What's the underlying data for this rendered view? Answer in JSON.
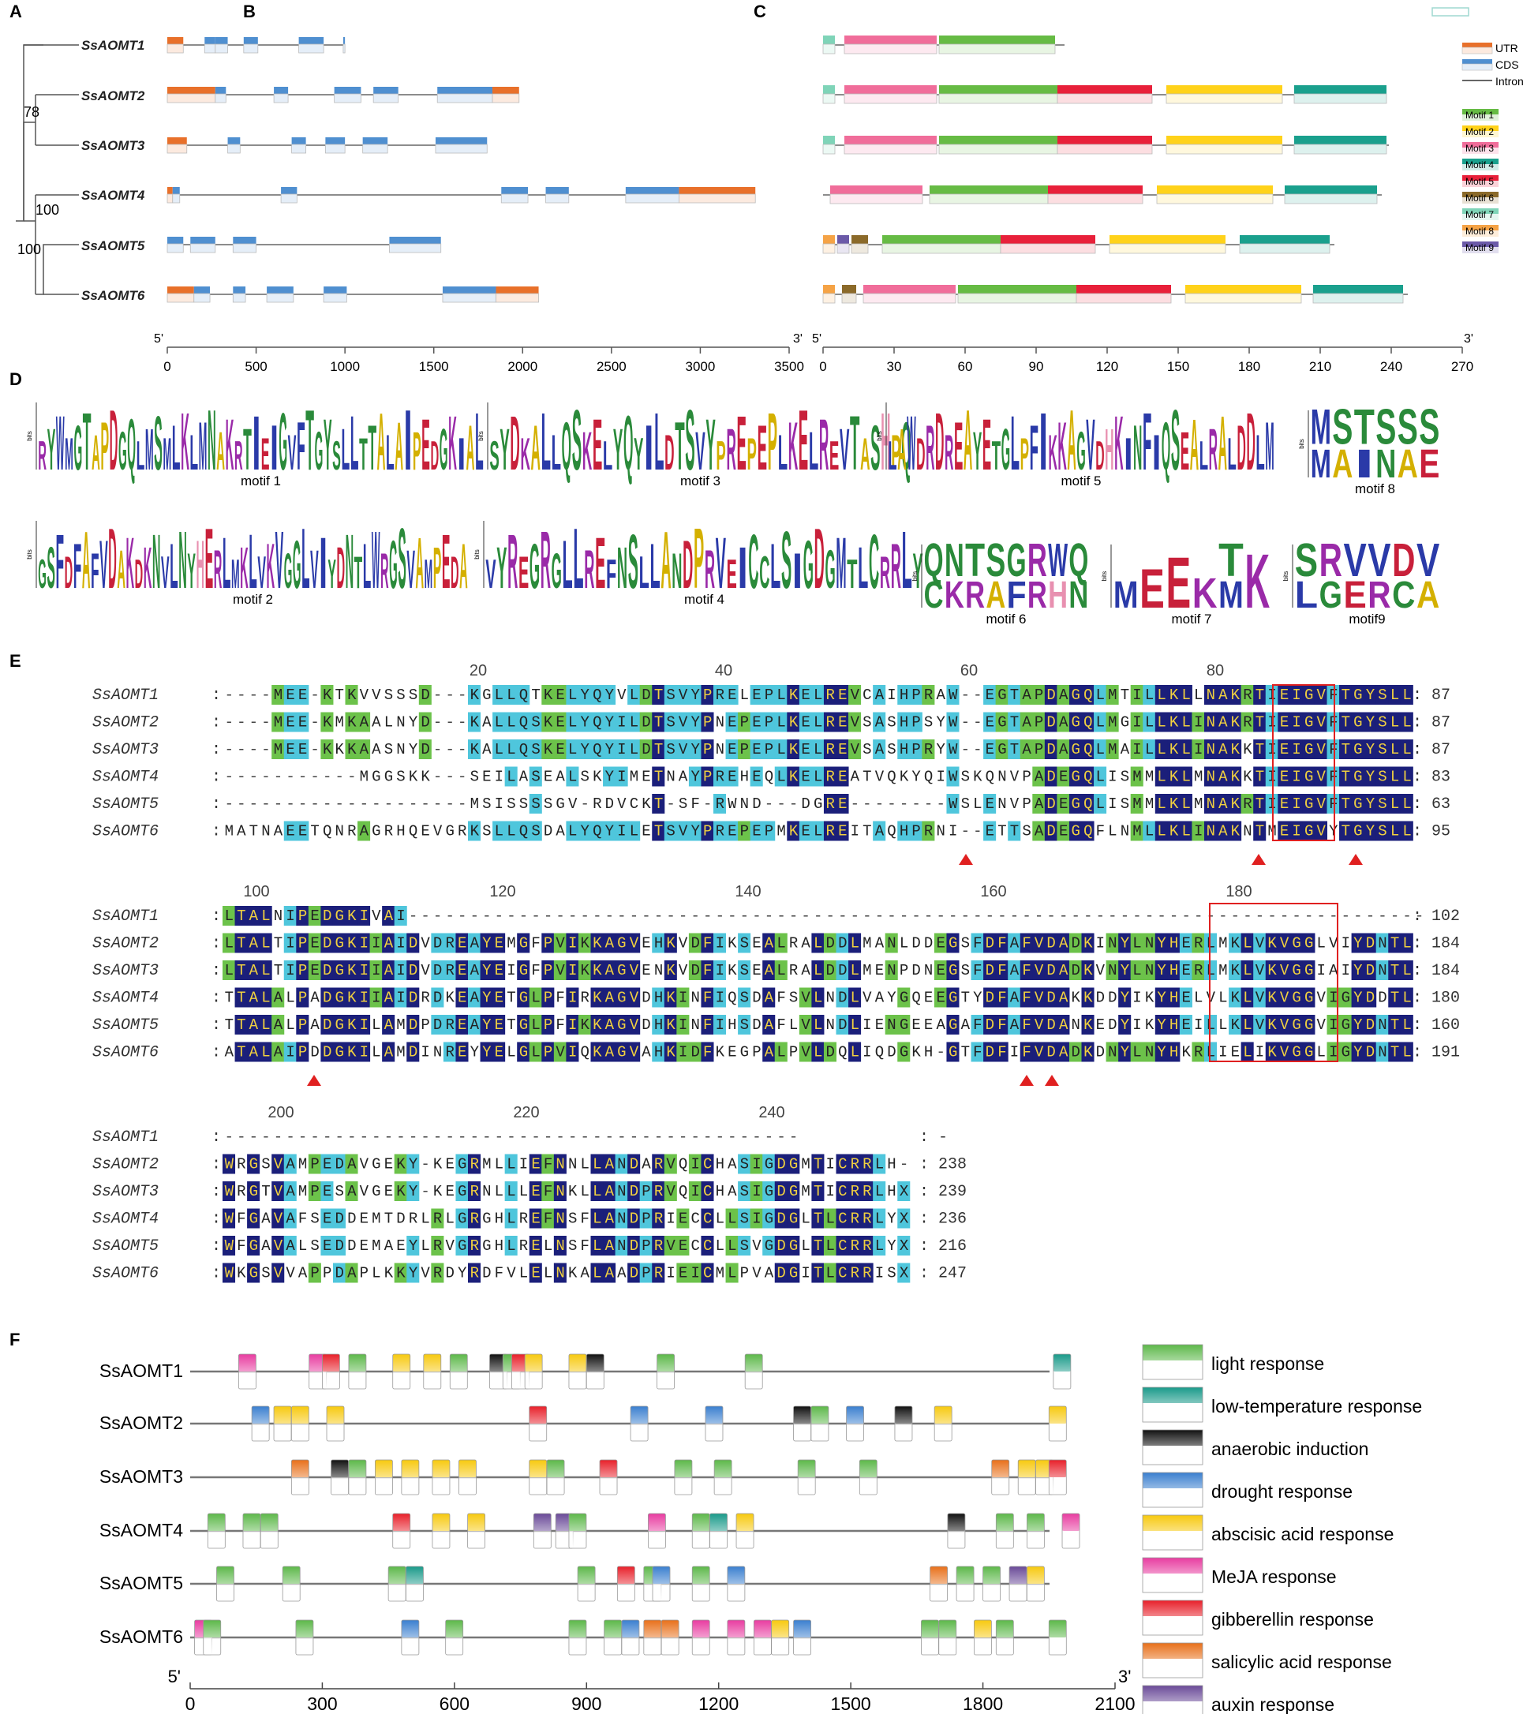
{
  "panels": {
    "A": "A",
    "B": "B",
    "C": "C",
    "D": "D",
    "E": "E",
    "F": "F"
  },
  "genes": [
    "SsAOMT1",
    "SsAOMT2",
    "SsAOMT3",
    "SsAOMT4",
    "SsAOMT5",
    "SsAOMT6"
  ],
  "tree": {
    "bootstrap": [
      "78",
      "100",
      "100"
    ]
  },
  "colors": {
    "utr": "#e8702a",
    "cds": "#4f8fd0",
    "intron": "#333333",
    "motif1": "#66bb44",
    "motif2": "#ffd21a",
    "motif3": "#f06d9a",
    "motif4": "#1aa08d",
    "motif5": "#e8203a",
    "motif6": "#8b6a2a",
    "motif7": "#7fd4b8",
    "motif8": "#f5a346",
    "motif9": "#6b5aa8",
    "dark_block": "#1b1f7a",
    "cyan_block": "#4fc6dc",
    "green_block": "#6cc24a"
  },
  "gene_structure": {
    "legend": [
      {
        "key": "utr",
        "label": "UTR"
      },
      {
        "key": "cds",
        "label": "CDS"
      },
      {
        "key": "intron",
        "label": "Intron"
      }
    ],
    "axis": {
      "start_label": "5'",
      "end_label": "3'",
      "ticks": [
        "0",
        "500",
        "1000",
        "1500",
        "2000",
        "2500",
        "3000",
        "3500"
      ],
      "range": [
        0,
        3500
      ]
    },
    "features": [
      [
        [
          "utr",
          0,
          90
        ],
        [
          "cds",
          210,
          270
        ],
        [
          "cds",
          270,
          340
        ],
        [
          "cds",
          430,
          510
        ],
        [
          "cds",
          740,
          880
        ],
        [
          "cds",
          990,
          1000
        ]
      ],
      [
        [
          "utr",
          0,
          270
        ],
        [
          "cds",
          270,
          330
        ],
        [
          "cds",
          600,
          680
        ],
        [
          "cds",
          940,
          1090
        ],
        [
          "cds",
          1160,
          1300
        ],
        [
          "cds",
          1520,
          1830
        ],
        [
          "utr",
          1830,
          1980
        ]
      ],
      [
        [
          "utr",
          0,
          110
        ],
        [
          "cds",
          340,
          410
        ],
        [
          "cds",
          700,
          780
        ],
        [
          "cds",
          890,
          1000
        ],
        [
          "cds",
          1100,
          1240
        ],
        [
          "cds",
          1510,
          1800
        ]
      ],
      [
        [
          "utr",
          0,
          30
        ],
        [
          "cds",
          30,
          70
        ],
        [
          "cds",
          640,
          730
        ],
        [
          "cds",
          1880,
          2030
        ],
        [
          "cds",
          2130,
          2260
        ],
        [
          "cds",
          2580,
          2880
        ],
        [
          "utr",
          2880,
          3310
        ]
      ],
      [
        [
          "cds",
          0,
          90
        ],
        [
          "cds",
          130,
          270
        ],
        [
          "cds",
          370,
          500
        ],
        [
          "cds",
          1250,
          1540
        ]
      ],
      [
        [
          "utr",
          0,
          150
        ],
        [
          "cds",
          150,
          240
        ],
        [
          "cds",
          370,
          440
        ],
        [
          "cds",
          560,
          710
        ],
        [
          "cds",
          880,
          1010
        ],
        [
          "cds",
          1550,
          1850
        ],
        [
          "utr",
          1850,
          2090
        ]
      ]
    ]
  },
  "motif_structure": {
    "legend": [
      {
        "key": "motif1",
        "label": "Motif 1"
      },
      {
        "key": "motif2",
        "label": "Motif 2"
      },
      {
        "key": "motif3",
        "label": "Motif 3"
      },
      {
        "key": "motif4",
        "label": "Motif 4"
      },
      {
        "key": "motif5",
        "label": "Motif 5"
      },
      {
        "key": "motif6",
        "label": "Motif 6"
      },
      {
        "key": "motif7",
        "label": "Motif 7"
      },
      {
        "key": "motif8",
        "label": "Motif 8"
      },
      {
        "key": "motif9",
        "label": "Motif 9"
      }
    ],
    "axis": {
      "start_label": "5'",
      "end_label": "3'",
      "ticks": [
        "0",
        "30",
        "60",
        "90",
        "120",
        "150",
        "180",
        "210",
        "240",
        "270"
      ],
      "range": [
        0,
        270
      ]
    },
    "lengths": [
      102,
      238,
      239,
      236,
      216,
      247
    ],
    "features": [
      [
        [
          "motif7",
          0,
          5
        ],
        [
          "motif3",
          9,
          48
        ],
        [
          "motif1",
          49,
          98
        ]
      ],
      [
        [
          "motif7",
          0,
          5
        ],
        [
          "motif3",
          9,
          48
        ],
        [
          "motif1",
          49,
          99
        ],
        [
          "motif5",
          99,
          139
        ],
        [
          "motif2",
          145,
          194
        ],
        [
          "motif4",
          199,
          238
        ]
      ],
      [
        [
          "motif7",
          0,
          5
        ],
        [
          "motif3",
          9,
          48
        ],
        [
          "motif1",
          49,
          99
        ],
        [
          "motif5",
          99,
          139
        ],
        [
          "motif2",
          145,
          194
        ],
        [
          "motif4",
          199,
          238
        ]
      ],
      [
        [
          "motif3",
          3,
          42
        ],
        [
          "motif1",
          45,
          95
        ],
        [
          "motif5",
          95,
          135
        ],
        [
          "motif2",
          141,
          190
        ],
        [
          "motif4",
          195,
          234
        ]
      ],
      [
        [
          "motif8",
          0,
          5
        ],
        [
          "motif9",
          6,
          11
        ],
        [
          "motif6",
          12,
          19
        ],
        [
          "motif1",
          25,
          75
        ],
        [
          "motif5",
          75,
          115
        ],
        [
          "motif2",
          121,
          170
        ],
        [
          "motif4",
          176,
          214
        ]
      ],
      [
        [
          "motif8",
          0,
          5
        ],
        [
          "motif6",
          8,
          14
        ],
        [
          "motif3",
          17,
          56
        ],
        [
          "motif1",
          57,
          107
        ],
        [
          "motif5",
          107,
          147
        ],
        [
          "motif2",
          153,
          202
        ],
        [
          "motif4",
          207,
          245
        ]
      ]
    ]
  },
  "logos": {
    "y_label": "bits",
    "items": [
      {
        "caption": "motif 1",
        "letters": "RYWMGTAPDGQLMSMLKLMNAKRTIEIGVFTGYSLLTTALAIPEDGKIAL"
      },
      {
        "caption": "motif 3",
        "letters": "SYDKALLQSKELYQYILDTSVYPREPEPLKELREVTASHPQ"
      },
      {
        "caption": "motif 5",
        "letters": "LAWDRDREAYETGLPFIKKAGVDHKINFIQSEALRALDDLM"
      },
      {
        "caption": "motif 8",
        "letters": "MSTSSS",
        "alt": "MAINAE"
      },
      {
        "caption": "motif 2",
        "letters": "GSFDFAFVDAKDKNVLNYHERLMKLVKVGGLVIYDNTLWRGSVAMPEDA"
      },
      {
        "caption": "motif 4",
        "letters": "VYREGRGLLREFNSLLANDPRVEICCLSIGDGMTLCRRLY"
      },
      {
        "caption": "motif 6",
        "letters": "QNTSGRWQ",
        "alt": "CKRAFRHN"
      },
      {
        "caption": "motif 7",
        "letters": "MEEKTK",
        "alt": "    M "
      },
      {
        "caption": "motif9",
        "letters": "SRVVDV",
        "alt": "LGERCA"
      }
    ]
  },
  "alignment": {
    "blocks": [
      {
        "ruler": [
          "20",
          "40",
          "60",
          "80"
        ],
        "rows": [
          {
            "name": "SsAOMT1",
            "seq": "----MEE-KTKVVSSSD---KGLLQTKELYQYVLDTSVYPRELEPLKELREVCAIHPRAW--EGTAPDAGQLMTILLKLLNAKRTIEIGVFTGYSLL",
            "end": "87"
          },
          {
            "name": "SsAOMT2",
            "seq": "----MEE-KMKAALNYD---KALLQSKELYQYILDTSVYPNEPEPLKELREVSASHPSYW--EGTAPDAGQLMGILLKLINAKRTIEIGVFTGYSLL",
            "end": "87"
          },
          {
            "name": "SsAOMT3",
            "seq": "----MEE-KKKAASNYD---KALLQSKELYQYILDTSVYPNEPEPLKELREVSASHPRYW--EGTAPDAGQLMAILLKLINAKKTIEIGVFTGYSLL",
            "end": "87"
          },
          {
            "name": "SsAOMT4",
            "seq": "-----------MGGSKK---SEILASEALSKYIMETNAYPREHEQLKELREATVQKYQIWSKQNVPADEGQLISMMLKLMNAKKTIEIGVFTGYSLL",
            "end": "83"
          },
          {
            "name": "SsAOMT5",
            "seq": "--------------------MSISSSSGV-RDVCKT-SF-RWND---DGRE--------WSLENVPADEGQLISMMLKLMNAKRTIEIGVFTGYSLL",
            "end": "63"
          },
          {
            "name": "SsAOMT6",
            "seq": "MATNAEETQNRAGRHQEVGRKSLLQSDALYQYILETSVYPREPEPMKELREITAQHPRNI--ETTSADEGQFLNMLLKLINAKNTMEIGVYTGYSLL",
            "end": "95"
          }
        ]
      },
      {
        "ruler": [
          "100",
          "120",
          "140",
          "160",
          "180"
        ],
        "rows": [
          {
            "name": "SsAOMT1",
            "seq": "LTALNIPEDGKIVAI-----------------------------------------------------------------------------------",
            "end": "102"
          },
          {
            "name": "SsAOMT2",
            "seq": "LTALTIPEDGKIIAIDVDREAYEMGFPVIKKAGVEHKVDFIKSEALRALDDLMANLDDEGSFDFAFVDADKINYLNYHERLMKLVKVGGLVIYDNTL",
            "end": "184"
          },
          {
            "name": "SsAOMT3",
            "seq": "LTALTIPEDGKIIAIDVDREAYEIGFPVIKKAGVENKVDFIKSEALRALDDLMENPDNEGSFDFAFVDADKVNYLNYHERLMKLVKVGGIAIYDNTL",
            "end": "184"
          },
          {
            "name": "SsAOMT4",
            "seq": "TTALALPADGKIIAIDRDKEAYETGLPFIRKAGVDHKINFIQSDAFSVLNDLVAYGQEEGTYDFAFVDAKKDDYIKYHELVLKLVKVGGVIGYDDTL",
            "end": "180"
          },
          {
            "name": "SsAOMT5",
            "seq": "TTALALPADGKILAMDPDREAYETGLPFIKKAGVDHKINFIHSDAFLVLNDLIENGEEAGAFDFAFVDANKEDYIKYHEILLKLVKVGGVIGYDNTL",
            "end": "160"
          },
          {
            "name": "SsAOMT6",
            "seq": "ATALAIPDDGKILAMDINREYYELGLPVIQKAGVAHKIDFKEGPALPVLDQLIQDGKH-GTFDFIFVDADKDNYLNYHKRLIELIKVGGLIGYDNTL",
            "end": "191"
          }
        ]
      },
      {
        "ruler": [
          "200",
          "220",
          "240"
        ],
        "rows": [
          {
            "name": "SsAOMT1",
            "seq": "-----------------------------------------------",
            "end": "-"
          },
          {
            "name": "SsAOMT2",
            "seq": "WRGSVAMPEDAVGEKY-KEGRMLLIEFNNLLANDARVQICHASIGDGMTICRRLH-",
            "end": "238"
          },
          {
            "name": "SsAOMT3",
            "seq": "WRGTVAMPESAVGEKY-KEGRNLLLEFNKLLANDPRVQICHASIGDGMTICRRLHX",
            "end": "239"
          },
          {
            "name": "SsAOMT4",
            "seq": "WFGAVAFSEDDEMTDRLRLGRGHLREFNSFLANDPRIECCLLSIGDGLTLCRRLYX",
            "end": "236"
          },
          {
            "name": "SsAOMT5",
            "seq": "WFGAVALSEDDEMAEYLRVGRGHLRELNSFLANDPRVECCLLSVGDGLTLCRRLYX",
            "end": "216"
          },
          {
            "name": "SsAOMT6",
            "seq": "WKGSVVAPPDAPLKKYVRDYRDFVLELNKALAADPRIEICMLPVADGITLCRRISX",
            "end": "247"
          }
        ]
      }
    ]
  },
  "promoter": {
    "names": [
      "SsAOMT1",
      "SsAOMT2",
      "SsAOMT3",
      "SsAOMT4",
      "SsAOMT5",
      "SsAOMT6"
    ],
    "legend": [
      {
        "key": "light",
        "label": "light response",
        "color": "#5db84a"
      },
      {
        "key": "lowtemp",
        "label": "low-temperature response",
        "color": "#1a9a8a"
      },
      {
        "key": "anaerobic",
        "label": "anaerobic induction",
        "color": "#111111"
      },
      {
        "key": "drought",
        "label": "drought response",
        "color": "#3a7fcf"
      },
      {
        "key": "aba",
        "label": "abscisic acid response",
        "color": "#f7c90f"
      },
      {
        "key": "meja",
        "label": "MeJA response",
        "color": "#e83ca0"
      },
      {
        "key": "ga",
        "label": "gibberellin response",
        "color": "#e8202a"
      },
      {
        "key": "sa",
        "label": "salicylic acid response",
        "color": "#e8701a"
      },
      {
        "key": "auxin",
        "label": "auxin response",
        "color": "#6a4a98"
      }
    ],
    "axis": {
      "start_label": "5'",
      "end_label": "3'",
      "ticks": [
        "0",
        "300",
        "600",
        "900",
        "1200",
        "1500",
        "1800",
        "2100"
      ],
      "range": [
        0,
        2100
      ]
    },
    "elements": [
      [
        [
          "meja",
          110
        ],
        [
          "meja",
          270
        ],
        [
          "ga",
          300
        ],
        [
          "light",
          360
        ],
        [
          "aba",
          460
        ],
        [
          "aba",
          530
        ],
        [
          "light",
          590
        ],
        [
          "anaerobic",
          680
        ],
        [
          "light",
          710
        ],
        [
          "ga",
          730
        ],
        [
          "aba",
          760
        ],
        [
          "aba",
          860
        ],
        [
          "anaerobic",
          900
        ],
        [
          "light",
          1060
        ],
        [
          "light",
          1260
        ],
        [
          "lowtemp",
          1960
        ]
      ],
      [
        [
          "drought",
          140
        ],
        [
          "aba",
          190
        ],
        [
          "aba",
          230
        ],
        [
          "aba",
          310
        ],
        [
          "ga",
          770
        ],
        [
          "drought",
          1000
        ],
        [
          "drought",
          1170
        ],
        [
          "anaerobic",
          1370
        ],
        [
          "light",
          1410
        ],
        [
          "drought",
          1490
        ],
        [
          "anaerobic",
          1600
        ],
        [
          "aba",
          1690
        ],
        [
          "aba",
          1950
        ]
      ],
      [
        [
          "sa",
          230
        ],
        [
          "anaerobic",
          320
        ],
        [
          "light",
          360
        ],
        [
          "aba",
          420
        ],
        [
          "aba",
          480
        ],
        [
          "aba",
          550
        ],
        [
          "aba",
          610
        ],
        [
          "aba",
          770
        ],
        [
          "light",
          810
        ],
        [
          "ga",
          930
        ],
        [
          "light",
          1100
        ],
        [
          "light",
          1190
        ],
        [
          "light",
          1380
        ],
        [
          "light",
          1520
        ],
        [
          "sa",
          1820
        ],
        [
          "aba",
          1880
        ],
        [
          "aba",
          1920
        ],
        [
          "ga",
          1950
        ]
      ],
      [
        [
          "light",
          40
        ],
        [
          "light",
          120
        ],
        [
          "light",
          160
        ],
        [
          "ga",
          460
        ],
        [
          "aba",
          550
        ],
        [
          "aba",
          630
        ],
        [
          "auxin",
          780
        ],
        [
          "auxin",
          830
        ],
        [
          "light",
          860
        ],
        [
          "meja",
          1040
        ],
        [
          "light",
          1140
        ],
        [
          "lowtemp",
          1180
        ],
        [
          "aba",
          1240
        ],
        [
          "anaerobic",
          1720
        ],
        [
          "light",
          1830
        ],
        [
          "light",
          1900
        ],
        [
          "meja",
          1980
        ]
      ],
      [
        [
          "light",
          60
        ],
        [
          "light",
          210
        ],
        [
          "light",
          450
        ],
        [
          "lowtemp",
          490
        ],
        [
          "light",
          880
        ],
        [
          "ga",
          970
        ],
        [
          "light",
          1030
        ],
        [
          "drought",
          1050
        ],
        [
          "light",
          1140
        ],
        [
          "drought",
          1220
        ],
        [
          "sa",
          1680
        ],
        [
          "light",
          1740
        ],
        [
          "light",
          1800
        ],
        [
          "auxin",
          1860
        ],
        [
          "aba",
          1900
        ]
      ],
      [
        [
          "meja",
          10
        ],
        [
          "light",
          30
        ],
        [
          "light",
          240
        ],
        [
          "drought",
          480
        ],
        [
          "light",
          580
        ],
        [
          "light",
          860
        ],
        [
          "light",
          940
        ],
        [
          "drought",
          980
        ],
        [
          "sa",
          1030
        ],
        [
          "sa",
          1070
        ],
        [
          "meja",
          1140
        ],
        [
          "meja",
          1220
        ],
        [
          "meja",
          1280
        ],
        [
          "aba",
          1320
        ],
        [
          "drought",
          1370
        ],
        [
          "light",
          1660
        ],
        [
          "light",
          1700
        ],
        [
          "aba",
          1780
        ],
        [
          "light",
          1830
        ],
        [
          "light",
          1950
        ]
      ]
    ]
  }
}
